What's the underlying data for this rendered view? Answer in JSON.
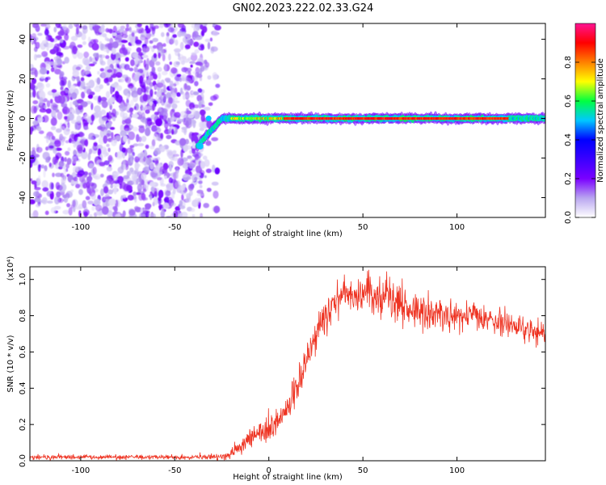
{
  "title": "GN02.2023.222.02.33.G24",
  "chart_data": [
    {
      "type": "heatmap",
      "title": "GN02.2023.222.02.33.G24",
      "xlabel": "Height of straight line (km)",
      "ylabel": "Frequency (Hz)",
      "xlim": [
        -127,
        147
      ],
      "ylim": [
        -50,
        48
      ],
      "x_ticks": [
        -100,
        -50,
        0,
        50,
        100
      ],
      "y_ticks": [
        -40,
        -20,
        0,
        20,
        40
      ],
      "colorbar": {
        "label": "Normalized spectral amplitude",
        "range": [
          0.0,
          1.0
        ],
        "ticks": [
          "0.0",
          "0.2",
          "0.4",
          "0.6",
          "0.8"
        ],
        "colormap": [
          "#ffffff",
          "#b9a6f0",
          "#7a00ff",
          "#3b00ff",
          "#0000ff",
          "#00c8ff",
          "#00ff40",
          "#ffff00",
          "#ff8000",
          "#ff0000",
          "#ff1493"
        ]
      },
      "features": [
        {
          "description": "noise",
          "x_range": [
            -127,
            -27
          ],
          "freq_range": [
            -50,
            48
          ],
          "amplitude_range": [
            0.0,
            0.2
          ]
        },
        {
          "description": "signal track",
          "x_range": [
            -38,
            147
          ],
          "freq_at_start": -14,
          "freq_after_x_minus_25": 0,
          "amplitude_range": [
            0.4,
            0.95
          ]
        }
      ]
    },
    {
      "type": "line",
      "xlabel": "Height of straight line (km)",
      "ylabel": "SNR (10 * v/v)",
      "y_multiplier": "(x10⁴)",
      "xlim": [
        -127,
        147
      ],
      "ylim": [
        0.0,
        1.07
      ],
      "x_ticks": [
        -100,
        -50,
        0,
        50,
        100
      ],
      "y_ticks": [
        "0.0",
        "0.2",
        "0.4",
        "0.6",
        "0.8",
        "1.0"
      ],
      "color": "#ee3322",
      "series": [
        {
          "x": [
            -127,
            -100,
            -50,
            -25,
            -20,
            -15,
            -10,
            -5,
            0,
            5,
            10,
            15,
            20,
            25,
            30,
            35,
            40,
            45,
            50,
            55,
            60,
            70,
            80,
            90,
            100,
            110,
            120,
            130,
            140,
            147
          ],
          "values": [
            0.02,
            0.02,
            0.02,
            0.02,
            0.04,
            0.08,
            0.12,
            0.15,
            0.17,
            0.21,
            0.28,
            0.42,
            0.55,
            0.68,
            0.8,
            0.87,
            0.9,
            0.92,
            0.93,
            0.93,
            0.9,
            0.86,
            0.82,
            0.8,
            0.8,
            0.79,
            0.77,
            0.75,
            0.71,
            0.69
          ],
          "noise_amplitude": [
            0.01,
            0.01,
            0.01,
            0.015,
            0.03,
            0.04,
            0.05,
            0.05,
            0.06,
            0.06,
            0.07,
            0.07,
            0.08,
            0.08,
            0.08,
            0.08,
            0.08,
            0.09,
            0.1,
            0.1,
            0.09,
            0.08,
            0.08,
            0.08,
            0.08,
            0.07,
            0.07,
            0.06,
            0.05,
            0.05
          ]
        }
      ]
    }
  ]
}
